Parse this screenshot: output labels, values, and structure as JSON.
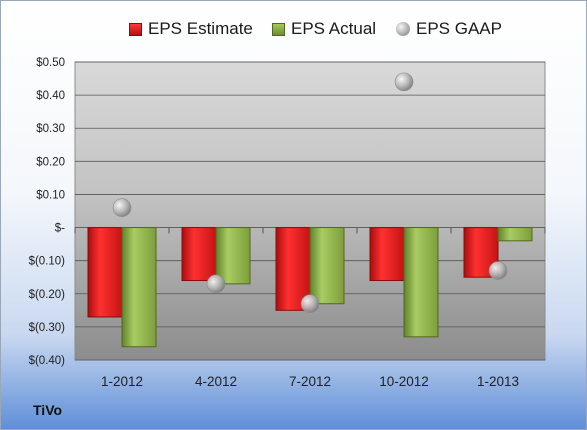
{
  "chart_data": {
    "type": "bar",
    "legend_position": "top",
    "categories": [
      "1-2012",
      "4-2012",
      "7-2012",
      "10-2012",
      "1-2013"
    ],
    "series": [
      {
        "name": "EPS Estimate",
        "kind": "bar",
        "color": "#d42020",
        "values": [
          -0.27,
          -0.16,
          -0.25,
          -0.16,
          -0.15
        ]
      },
      {
        "name": "EPS Actual",
        "kind": "bar",
        "color": "#8aad45",
        "values": [
          -0.36,
          -0.17,
          -0.23,
          -0.33,
          -0.04
        ]
      },
      {
        "name": "EPS GAAP",
        "kind": "marker",
        "color": "#b4b4b4",
        "values": [
          0.06,
          -0.17,
          -0.23,
          0.44,
          -0.13
        ]
      }
    ],
    "ylim": [
      -0.4,
      0.5
    ],
    "yticks": [
      0.5,
      0.4,
      0.3,
      0.2,
      0.1,
      0.0,
      -0.1,
      -0.2,
      -0.3,
      -0.4
    ],
    "ytick_labels": [
      "$0.50",
      "$0.40",
      "$0.30",
      "$0.20",
      "$0.10",
      "$-",
      "$(0.10)",
      "$(0.20)",
      "$(0.30)",
      "$(0.40)"
    ],
    "grid": true,
    "xlabel": "",
    "ylabel": ""
  },
  "company_label": "TiVo"
}
